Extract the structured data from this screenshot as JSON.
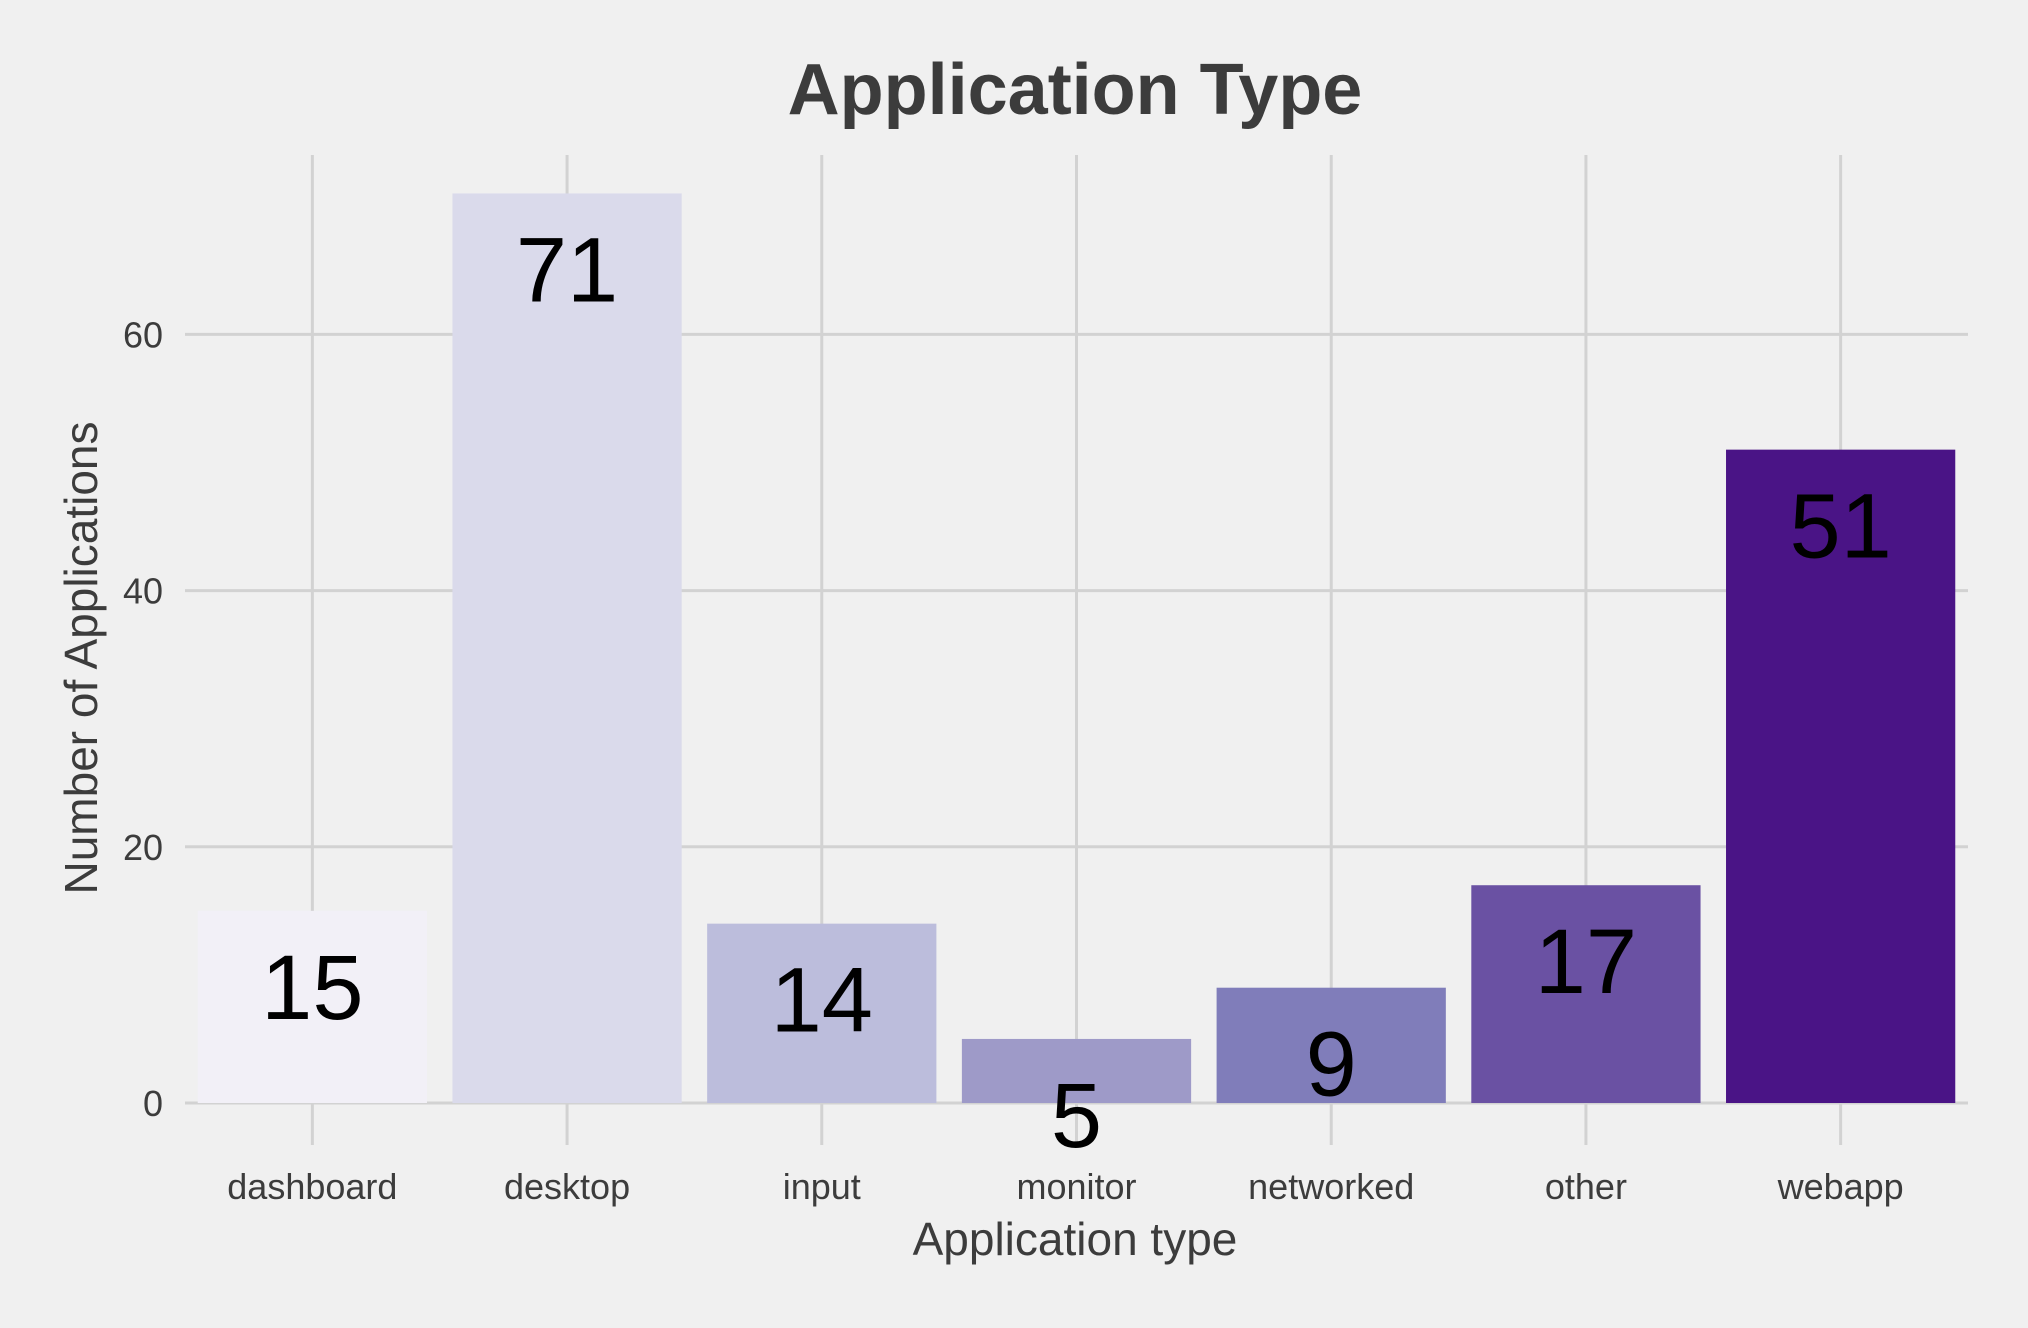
{
  "chart_data": {
    "type": "bar",
    "title": "Application Type",
    "xlabel": "Application type",
    "ylabel": "Number of Applications",
    "categories": [
      "dashboard",
      "desktop",
      "input",
      "monitor",
      "networked",
      "other",
      "webapp"
    ],
    "values": [
      15,
      71,
      14,
      5,
      9,
      17,
      51
    ],
    "data_labels": [
      "15",
      "71",
      "14",
      "5",
      "9",
      "17",
      "51"
    ],
    "colors": [
      "#f2f0f7",
      "#dadaeb",
      "#bcbddc",
      "#9e9ac8",
      "#807dba",
      "#6a51a3",
      "#4a1486"
    ],
    "ylim": [
      0,
      74
    ],
    "yticks": [
      0,
      20,
      40,
      60
    ],
    "ytick_labels": [
      "0",
      "20",
      "40",
      "60"
    ],
    "grid": true,
    "legend": "none",
    "background": "#f0f0f0",
    "grid_color": "#d2d2d2"
  }
}
